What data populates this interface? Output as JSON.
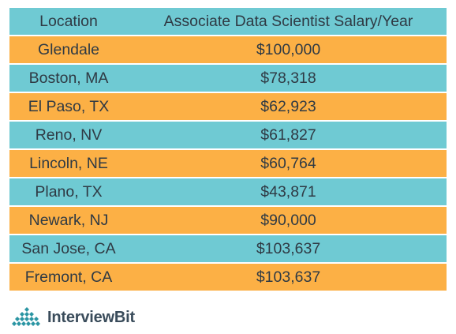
{
  "chart_data": {
    "type": "table",
    "columns": [
      "Location",
      "Associate Data Scientist Salary/Year"
    ],
    "rows": [
      [
        "Glendale",
        "$100,000"
      ],
      [
        "Boston, MA",
        "$78,318"
      ],
      [
        "El Paso, TX",
        "$62,923"
      ],
      [
        "Reno, NV",
        "$61,827"
      ],
      [
        "Lincoln, NE",
        "$60,764"
      ],
      [
        "Plano, TX",
        "$43,871"
      ],
      [
        "Newark, NJ",
        "$90,000"
      ],
      [
        "San Jose, CA",
        "$103,637"
      ],
      [
        "Fremont, CA",
        "$103,637"
      ]
    ]
  },
  "colors": {
    "header": "#6fcad3",
    "teal": "#6fcad3",
    "orange": "#fcb045",
    "text": "#2f3a44",
    "logo_text": "#3a4c5b",
    "logo_mark": "#2b95a3"
  },
  "logo": {
    "text": "InterviewBit",
    "icon": "interviewbit-logo-icon"
  }
}
